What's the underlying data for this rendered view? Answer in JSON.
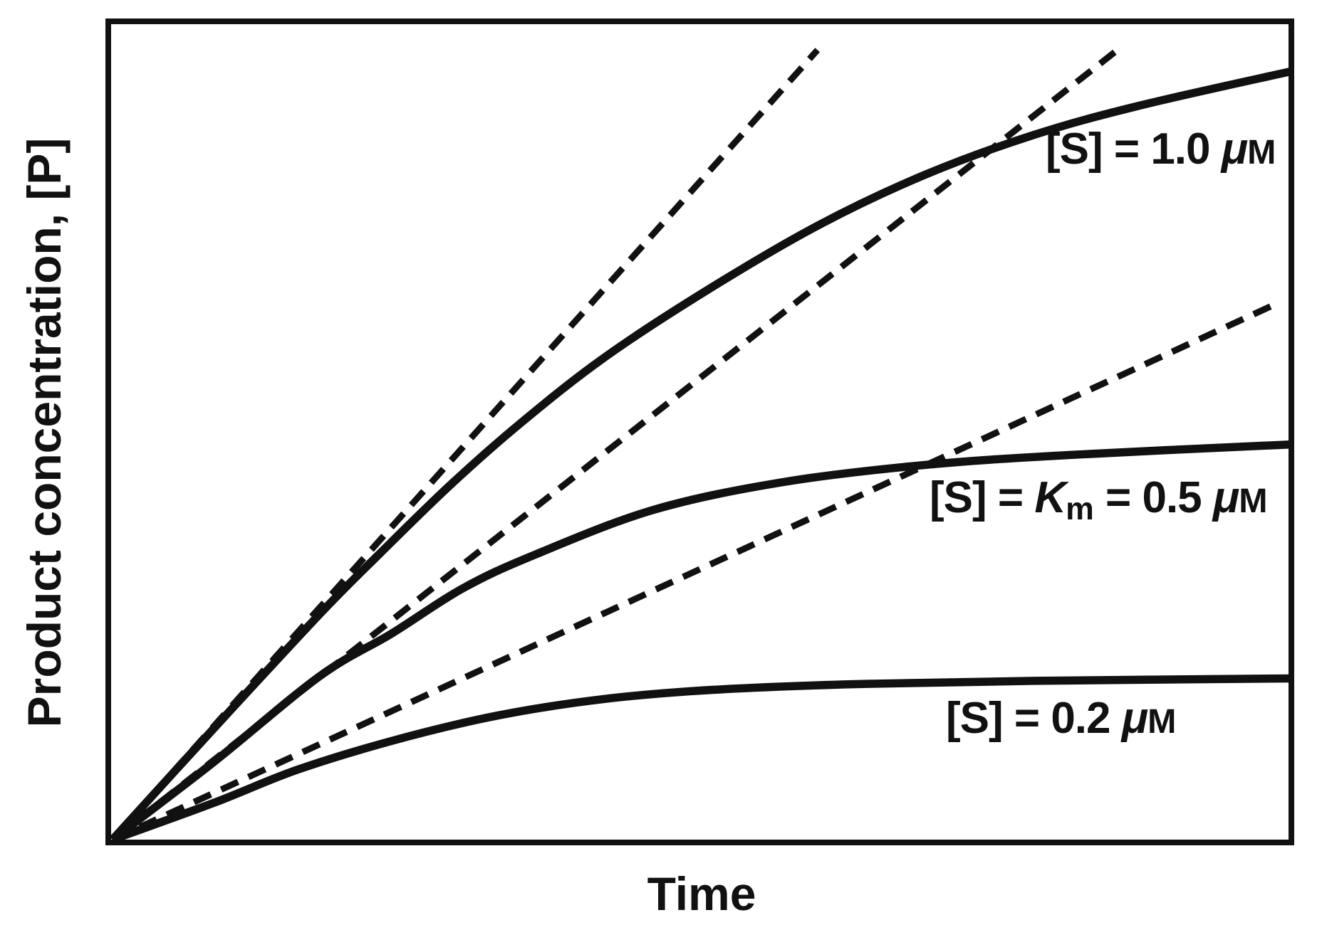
{
  "style": {
    "ink": "#111111",
    "background": "#ffffff"
  },
  "axes": {
    "xlabel": "Time",
    "ylabel": "Product concentration, [P]"
  },
  "curve_labels": {
    "s10": {
      "bracket": "[S]",
      "eq": " = ",
      "value": "1.0 ",
      "mu": "μ",
      "unit": "M"
    },
    "s05": {
      "bracket": "[S]",
      "eq": " = ",
      "km": "K",
      "km_sub": "m",
      "eq2": " = ",
      "value": "0.5 ",
      "mu": "μ",
      "unit": "M"
    },
    "s02": {
      "bracket": "[S]",
      "eq": " = ",
      "value": "0.2 ",
      "mu": "μ",
      "unit": "M"
    }
  },
  "chart_data": {
    "type": "line",
    "xlabel": "Time",
    "ylabel": "Product concentration, [P]",
    "x_range": [
      0,
      1
    ],
    "y_range": [
      0,
      1
    ],
    "ticks": "none",
    "grid": false,
    "frame": "full-box",
    "legend_position": "inline-labels",
    "series": [
      {
        "name": "[S] = 1.0 μM progress curve",
        "label": "[S] = 1.0 μM",
        "line_style": "solid",
        "x": [
          0,
          0.086,
          0.176,
          0.227,
          0.287,
          0.347,
          0.418,
          0.505,
          0.599,
          0.69,
          0.781,
          0.871,
          1.0
        ],
        "y": [
          0,
          0.136,
          0.276,
          0.35,
          0.434,
          0.51,
          0.59,
          0.672,
          0.751,
          0.813,
          0.861,
          0.897,
          0.939
        ]
      },
      {
        "name": "[S] = Km = 0.5 μM progress curve",
        "label": "[S] = Km = 0.5 μM",
        "line_style": "solid",
        "x": [
          0,
          0.086,
          0.176,
          0.237,
          0.297,
          0.358,
          0.459,
          0.569,
          0.69,
          0.811,
          1.0
        ],
        "y": [
          0,
          0.095,
          0.2,
          0.252,
          0.307,
          0.348,
          0.403,
          0.437,
          0.458,
          0.47,
          0.483
        ]
      },
      {
        "name": "[S] = 0.2 μM progress curve",
        "label": "[S] = 0.2 μM",
        "line_style": "solid",
        "x": [
          0,
          0.086,
          0.158,
          0.243,
          0.328,
          0.418,
          0.509,
          0.63,
          0.781,
          1.0
        ],
        "y": [
          0,
          0.045,
          0.086,
          0.123,
          0.152,
          0.172,
          0.183,
          0.19,
          0.194,
          0.197
        ]
      },
      {
        "name": "initial-velocity tangent for [S] = 1.0 μM",
        "line_style": "dashed",
        "x": [
          0,
          0.598
        ],
        "y": [
          0,
          0.965
        ]
      },
      {
        "name": "initial-velocity tangent for [S] = 0.5 μM",
        "line_style": "dashed",
        "x": [
          0,
          0.856
        ],
        "y": [
          0,
          0.969
        ]
      },
      {
        "name": "initial-velocity tangent for [S] = 0.2 μM",
        "line_style": "dashed",
        "x": [
          0,
          0.986
        ],
        "y": [
          0,
          0.654
        ]
      }
    ]
  }
}
